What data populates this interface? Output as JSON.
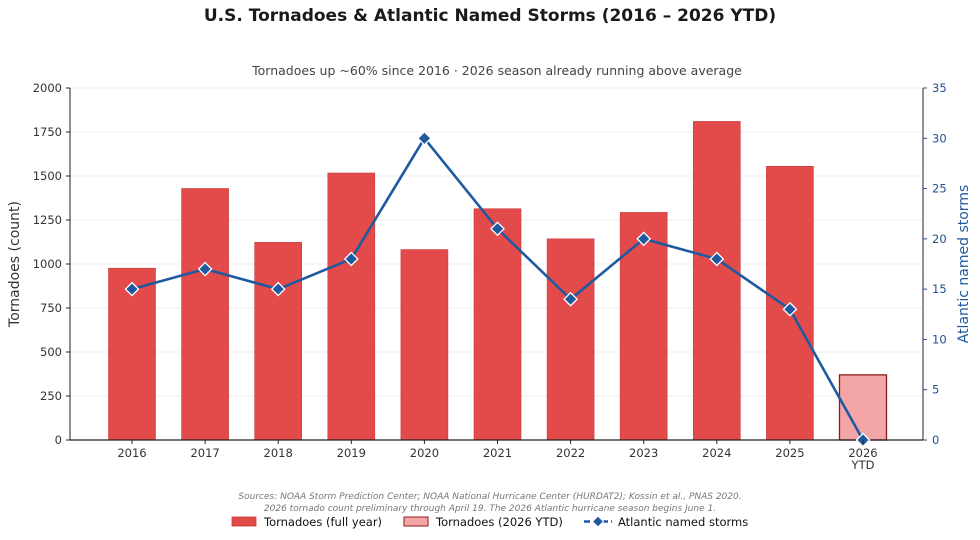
{
  "chart_data": {
    "type": "bar",
    "title": "U.S. Tornadoes & Atlantic Named Storms (2016 – 2026 YTD)",
    "subtitle": "Tornadoes up ~60% since 2016 · 2026 season already running above average",
    "categories": [
      "2016",
      "2017",
      "2018",
      "2019",
      "2020",
      "2021",
      "2022",
      "2023",
      "2024",
      "2025",
      "2026\nYTD"
    ],
    "series": [
      {
        "name": "Tornadoes (full year)",
        "type": "bar",
        "axis": "left",
        "color": "#e34a4a",
        "values": [
          976,
          1429,
          1123,
          1517,
          1082,
          1314,
          1143,
          1293,
          1810,
          1555,
          null
        ]
      },
      {
        "name": "Tornadoes (2026 YTD)",
        "type": "bar",
        "axis": "left",
        "color": "#f4a6a6",
        "edge_color": "#8b1a1a",
        "values": [
          null,
          null,
          null,
          null,
          null,
          null,
          null,
          null,
          null,
          null,
          370
        ]
      },
      {
        "name": "Atlantic named storms",
        "type": "line",
        "axis": "right",
        "color": "#1f5aa0",
        "marker": "diamond",
        "values": [
          15,
          17,
          15,
          18,
          30,
          21,
          14,
          20,
          18,
          13,
          0
        ]
      }
    ],
    "ylabel": "Tornadoes (count)",
    "ylim": [
      0,
      2000
    ],
    "yticks": [
      0,
      250,
      500,
      750,
      1000,
      1250,
      1500,
      1750,
      2000
    ],
    "y2label": "Atlantic named storms",
    "y2lim": [
      0,
      35
    ],
    "y2ticks": [
      0,
      5,
      10,
      15,
      20,
      25,
      30,
      35
    ],
    "grid": true,
    "legend_position": "bottom-center",
    "source_lines": [
      "Sources: NOAA Storm Prediction Center; NOAA National Hurricane Center (HURDAT2); Kossin et al., PNAS 2020.",
      "2026 tornado count preliminary through April 19. The 2026 Atlantic hurricane season begins June 1."
    ]
  }
}
